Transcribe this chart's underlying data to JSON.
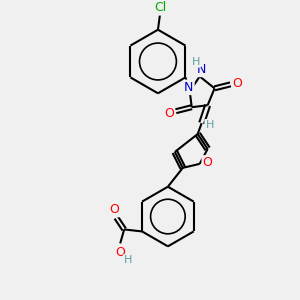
{
  "bg_color": "#f0f0f0",
  "atom_colors": {
    "C": "#000000",
    "N": "#0000cd",
    "O": "#ff0000",
    "Cl": "#00aa00",
    "H": "#5f9ea0"
  },
  "bond_color": "#000000",
  "bond_width": 1.5,
  "figsize": [
    3.0,
    3.0
  ],
  "dpi": 100
}
